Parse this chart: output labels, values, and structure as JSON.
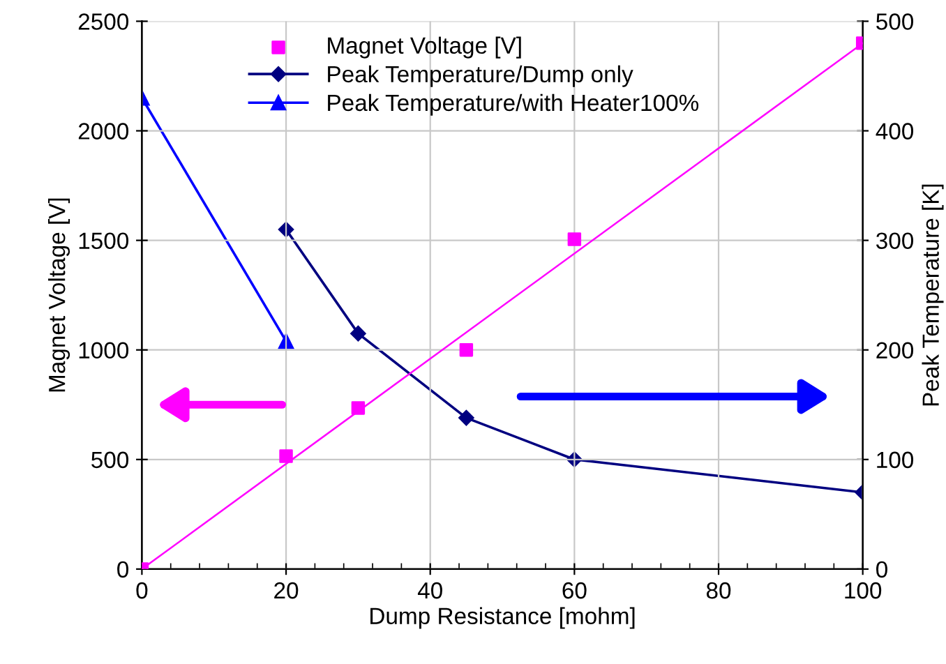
{
  "chart_data": {
    "type": "scatter",
    "xlabel": "Dump Resistance [mohm]",
    "ylabel": "Magnet Voltage [V]",
    "y2label": "Peak Temperature [K]",
    "xlim": [
      0,
      100
    ],
    "xticks": [
      0,
      20,
      40,
      60,
      80,
      100
    ],
    "ylim": [
      0,
      2500
    ],
    "yticks": [
      0,
      500,
      1000,
      1500,
      2000,
      2500
    ],
    "y2lim": [
      0,
      500
    ],
    "y2ticks": [
      0,
      100,
      200,
      300,
      400,
      500
    ],
    "grid": true,
    "legend": "top left",
    "series": [
      {
        "name": "Magnet Voltage [V]",
        "marker": "square",
        "color": "#ff00ff",
        "x": [
          0,
          20,
          30,
          45,
          60,
          100
        ],
        "values": [
          0,
          515,
          735,
          1000,
          1505,
          2400
        ]
      },
      {
        "type": "line",
        "marker": "none",
        "color": "#ff00ff",
        "x": [
          0,
          100
        ],
        "values": [
          0,
          2400
        ]
      },
      {
        "name": "Peak Temperature/Dump only",
        "type": "line",
        "marker": "diamond",
        "axis": "y2",
        "color": "#000080",
        "x": [
          20,
          30,
          45,
          60,
          100
        ],
        "values": [
          310,
          215,
          138,
          100,
          70
        ]
      },
      {
        "name": "Peak Temperature/with Heater100%",
        "type": "line",
        "marker": "triangle",
        "axis": "y2",
        "color": "#0000ff",
        "x": [
          0,
          20
        ],
        "values": [
          430,
          208
        ]
      }
    ]
  }
}
